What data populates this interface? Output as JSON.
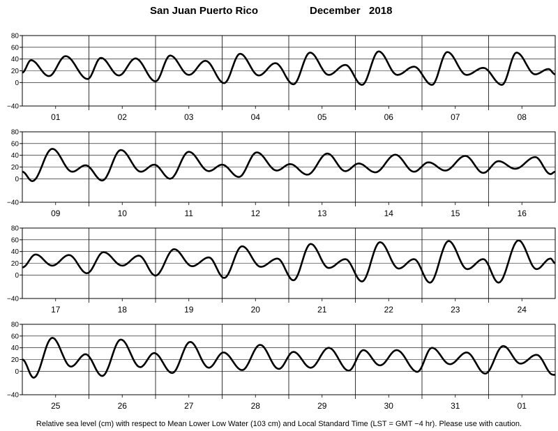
{
  "title": {
    "location": "San Juan Puerto Rico",
    "month": "December   2018"
  },
  "footer": "Relative sea level (cm) with respect to Mean Lower Low Water (103 cm) and Local Standard Time (LST = GMT −4 hr). Please use with caution.",
  "chart_data": {
    "type": "line",
    "title": "San Juan Puerto Rico December 2018",
    "xlabel": "",
    "ylabel": "",
    "ylim": [
      -40,
      80
    ],
    "yticks": [
      "80",
      "60",
      "40",
      "20",
      "0",
      "−40"
    ],
    "yticks_values": [
      80,
      60,
      40,
      20,
      0,
      -40
    ],
    "grid": "vertical day separators",
    "panels": [
      {
        "days": [
          "01",
          "02",
          "03",
          "04",
          "05",
          "06",
          "07",
          "08"
        ],
        "extrema": [
          {
            "x": 0.0,
            "y": 17
          },
          {
            "x": 0.13,
            "y": 38
          },
          {
            "x": 0.4,
            "y": 11
          },
          {
            "x": 0.65,
            "y": 45
          },
          {
            "x": 0.98,
            "y": 6
          },
          {
            "x": 1.18,
            "y": 42
          },
          {
            "x": 1.45,
            "y": 12
          },
          {
            "x": 1.7,
            "y": 41
          },
          {
            "x": 2.0,
            "y": 2
          },
          {
            "x": 2.22,
            "y": 46
          },
          {
            "x": 2.5,
            "y": 13
          },
          {
            "x": 2.75,
            "y": 37
          },
          {
            "x": 3.03,
            "y": -1
          },
          {
            "x": 3.27,
            "y": 49
          },
          {
            "x": 3.55,
            "y": 12
          },
          {
            "x": 3.8,
            "y": 33
          },
          {
            "x": 4.07,
            "y": -3
          },
          {
            "x": 4.32,
            "y": 51
          },
          {
            "x": 4.6,
            "y": 13
          },
          {
            "x": 4.85,
            "y": 30
          },
          {
            "x": 5.1,
            "y": -4
          },
          {
            "x": 5.35,
            "y": 53
          },
          {
            "x": 5.63,
            "y": 13
          },
          {
            "x": 5.88,
            "y": 27
          },
          {
            "x": 6.15,
            "y": -4
          },
          {
            "x": 6.38,
            "y": 52
          },
          {
            "x": 6.67,
            "y": 13
          },
          {
            "x": 6.92,
            "y": 25
          },
          {
            "x": 7.2,
            "y": -4
          },
          {
            "x": 7.42,
            "y": 51
          },
          {
            "x": 7.7,
            "y": 14
          },
          {
            "x": 7.9,
            "y": 23
          },
          {
            "x": 8.0,
            "y": 14
          }
        ]
      },
      {
        "days": [
          "09",
          "10",
          "11",
          "12",
          "13",
          "14",
          "15",
          "16"
        ],
        "extrema": [
          {
            "x": 0.0,
            "y": 12
          },
          {
            "x": 0.15,
            "y": -4
          },
          {
            "x": 0.45,
            "y": 51
          },
          {
            "x": 0.75,
            "y": 12
          },
          {
            "x": 0.95,
            "y": 23
          },
          {
            "x": 1.2,
            "y": -3
          },
          {
            "x": 1.48,
            "y": 49
          },
          {
            "x": 1.78,
            "y": 12
          },
          {
            "x": 1.98,
            "y": 24
          },
          {
            "x": 2.22,
            "y": 0
          },
          {
            "x": 2.5,
            "y": 46
          },
          {
            "x": 2.8,
            "y": 13
          },
          {
            "x": 3.0,
            "y": 24
          },
          {
            "x": 3.25,
            "y": 3
          },
          {
            "x": 3.52,
            "y": 45
          },
          {
            "x": 3.82,
            "y": 14
          },
          {
            "x": 4.02,
            "y": 25
          },
          {
            "x": 4.28,
            "y": 7
          },
          {
            "x": 4.58,
            "y": 43
          },
          {
            "x": 4.85,
            "y": 13
          },
          {
            "x": 5.05,
            "y": 26
          },
          {
            "x": 5.3,
            "y": 11
          },
          {
            "x": 5.6,
            "y": 41
          },
          {
            "x": 5.88,
            "y": 12
          },
          {
            "x": 6.1,
            "y": 28
          },
          {
            "x": 6.35,
            "y": 14
          },
          {
            "x": 6.65,
            "y": 39
          },
          {
            "x": 6.92,
            "y": 10
          },
          {
            "x": 7.15,
            "y": 30
          },
          {
            "x": 7.4,
            "y": 17
          },
          {
            "x": 7.7,
            "y": 37
          },
          {
            "x": 7.93,
            "y": 8
          },
          {
            "x": 8.0,
            "y": 12
          }
        ]
      },
      {
        "days": [
          "17",
          "18",
          "19",
          "20",
          "21",
          "22",
          "23",
          "24"
        ],
        "extrema": [
          {
            "x": 0.0,
            "y": 13
          },
          {
            "x": 0.2,
            "y": 35
          },
          {
            "x": 0.45,
            "y": 16
          },
          {
            "x": 0.7,
            "y": 34
          },
          {
            "x": 0.97,
            "y": 3
          },
          {
            "x": 1.22,
            "y": 39
          },
          {
            "x": 1.5,
            "y": 16
          },
          {
            "x": 1.75,
            "y": 33
          },
          {
            "x": 2.0,
            "y": -1
          },
          {
            "x": 2.28,
            "y": 44
          },
          {
            "x": 2.55,
            "y": 15
          },
          {
            "x": 2.8,
            "y": 30
          },
          {
            "x": 3.03,
            "y": -5
          },
          {
            "x": 3.3,
            "y": 49
          },
          {
            "x": 3.58,
            "y": 14
          },
          {
            "x": 3.83,
            "y": 28
          },
          {
            "x": 4.07,
            "y": -9
          },
          {
            "x": 4.33,
            "y": 53
          },
          {
            "x": 4.6,
            "y": 12
          },
          {
            "x": 4.85,
            "y": 27
          },
          {
            "x": 5.1,
            "y": -11
          },
          {
            "x": 5.37,
            "y": 56
          },
          {
            "x": 5.65,
            "y": 11
          },
          {
            "x": 5.88,
            "y": 27
          },
          {
            "x": 6.12,
            "y": -13
          },
          {
            "x": 6.4,
            "y": 58
          },
          {
            "x": 6.68,
            "y": 10
          },
          {
            "x": 6.92,
            "y": 27
          },
          {
            "x": 7.15,
            "y": -13
          },
          {
            "x": 7.45,
            "y": 59
          },
          {
            "x": 7.72,
            "y": 10
          },
          {
            "x": 7.93,
            "y": 28
          },
          {
            "x": 8.0,
            "y": 20
          }
        ]
      },
      {
        "days": [
          "25",
          "26",
          "27",
          "28",
          "29",
          "30",
          "31",
          "01"
        ],
        "extrema": [
          {
            "x": 0.0,
            "y": 20
          },
          {
            "x": 0.17,
            "y": -11
          },
          {
            "x": 0.45,
            "y": 57
          },
          {
            "x": 0.73,
            "y": 8
          },
          {
            "x": 0.95,
            "y": 29
          },
          {
            "x": 1.2,
            "y": -8
          },
          {
            "x": 1.48,
            "y": 54
          },
          {
            "x": 1.77,
            "y": 7
          },
          {
            "x": 1.98,
            "y": 31
          },
          {
            "x": 2.25,
            "y": -3
          },
          {
            "x": 2.52,
            "y": 50
          },
          {
            "x": 2.8,
            "y": 6
          },
          {
            "x": 3.02,
            "y": 32
          },
          {
            "x": 3.3,
            "y": 2
          },
          {
            "x": 3.57,
            "y": 45
          },
          {
            "x": 3.85,
            "y": 4
          },
          {
            "x": 4.07,
            "y": 33
          },
          {
            "x": 4.33,
            "y": 6
          },
          {
            "x": 4.6,
            "y": 40
          },
          {
            "x": 4.9,
            "y": 1
          },
          {
            "x": 5.12,
            "y": 36
          },
          {
            "x": 5.37,
            "y": 10
          },
          {
            "x": 5.62,
            "y": 36
          },
          {
            "x": 5.93,
            "y": -1
          },
          {
            "x": 6.15,
            "y": 40
          },
          {
            "x": 6.42,
            "y": 12
          },
          {
            "x": 6.67,
            "y": 32
          },
          {
            "x": 6.95,
            "y": -4
          },
          {
            "x": 7.22,
            "y": 43
          },
          {
            "x": 7.48,
            "y": 13
          },
          {
            "x": 7.72,
            "y": 28
          },
          {
            "x": 7.97,
            "y": -6
          },
          {
            "x": 8.0,
            "y": -6
          }
        ]
      }
    ]
  }
}
